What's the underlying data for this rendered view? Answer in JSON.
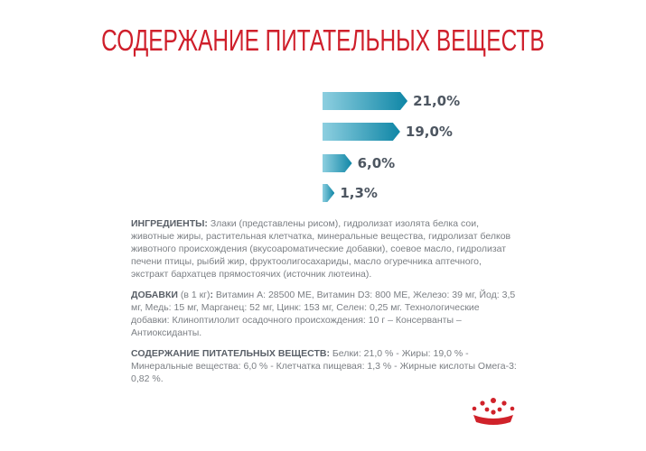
{
  "title": "СОДЕРЖАНИЕ ПИТАТЕЛЬНЫХ ВЕЩЕСТВ",
  "chart_data": {
    "type": "bar",
    "orientation": "horizontal",
    "categories": [
      "Белки",
      "Жиры",
      "Минеральные вещества",
      "Клетчатка пищевая"
    ],
    "values": [
      21.0,
      19.0,
      6.0,
      1.3
    ],
    "value_labels": [
      "21,0%",
      "19,0%",
      "6,0%",
      "1,3%"
    ],
    "unit": "%"
  },
  "ingredients": {
    "heading": "ИНГРЕДИЕНТЫ:",
    "text": " Злаки (представлены рисом), гидролизат изолята белка сои, животные жиры, растительная клетчатка, минеральные вещества, гидролизат белков животного происхождения (вкусоароматические добавки), соевое масло, гидролизат печени птицы, рыбий жир, фруктоолигосахариды, масло огуречника аптечного, экстракт бархатцев прямостоячих (источник лютеина)."
  },
  "additives": {
    "heading": "ДОБАВКИ",
    "sub": " (в 1 кг)",
    "colon": ":",
    "text": " Витамин А: 28500 МЕ, Витамин D3: 800 МЕ, Железо: 39 мг, Йод: 3,5 мг, Медь: 15 мг, Марганец: 52 мг, Цинк: 153  мг, Селен: 0,25 мг. Технологические добавки: Клиноптилолит осадочного происхождения: 10 г – Консерванты – Антиоксиданты."
  },
  "nutrients": {
    "heading": "СОДЕРЖАНИЕ ПИТАТЕЛЬНЫХ ВЕЩЕСТВ:",
    "text": " Белки: 21,0 % - Жиры: 19,0 % - Минеральные вещества: 6,0 %  - Клетчатка пищевая: 1,3 % - Жирные кислоты Омега-3: 0,82 %."
  },
  "colors": {
    "title": "#cf1f2b",
    "bar_start": "#8dcfe0",
    "bar_end": "#0f86a6",
    "label": "#4d5661"
  }
}
